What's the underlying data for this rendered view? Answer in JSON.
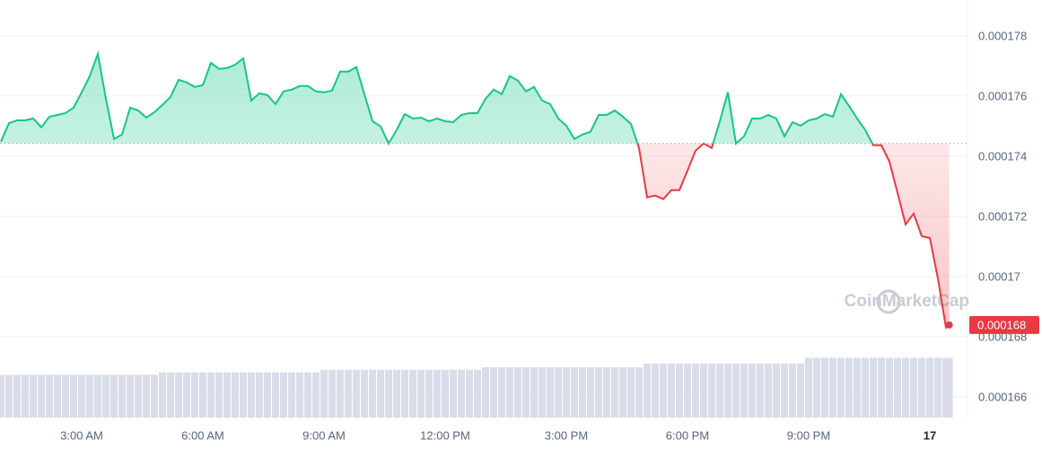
{
  "chart_data": {
    "type": "line",
    "watermark": "CoinMarketCap",
    "xlim": [
      0.978,
      24.867
    ],
    "xticks": [
      {
        "value": 3,
        "label": "3:00 AM"
      },
      {
        "value": 6,
        "label": "6:00 AM"
      },
      {
        "value": 9,
        "label": "9:00 AM"
      },
      {
        "value": 12,
        "label": "12:00 PM"
      },
      {
        "value": 15,
        "label": "3:00 PM"
      },
      {
        "value": 18,
        "label": "6:00 PM"
      },
      {
        "value": 21,
        "label": "9:00 PM"
      },
      {
        "value": 24,
        "label": "17"
      }
    ],
    "ylim": [
      0.00016531,
      0.00017919
    ],
    "yticks": [
      0.000166,
      0.000168,
      0.00017,
      0.000172,
      0.000174,
      0.000176,
      0.000178
    ],
    "grid": true,
    "baseline": 0.00017442,
    "up_color": "#16c784",
    "down_color": "#ea3943",
    "volume_color": "#d9dde9",
    "volume_ylim": [
      0,
      100
    ],
    "x": [
      1.0,
      1.2,
      1.4,
      1.6,
      1.8,
      2.0,
      2.2,
      2.4,
      2.6,
      2.8,
      3.0,
      3.2,
      3.4,
      3.6,
      3.8,
      4.0,
      4.2,
      4.4,
      4.6,
      4.8,
      5.0,
      5.2,
      5.4,
      5.6,
      5.8,
      6.0,
      6.2,
      6.4,
      6.6,
      6.8,
      7.0,
      7.2,
      7.4,
      7.6,
      7.8,
      8.0,
      8.2,
      8.4,
      8.6,
      8.8,
      9.0,
      9.2,
      9.4,
      9.6,
      9.8,
      10.0,
      10.2,
      10.4,
      10.6,
      10.8,
      11.0,
      11.2,
      11.4,
      11.6,
      11.8,
      12.0,
      12.2,
      12.4,
      12.6,
      12.8,
      13.0,
      13.2,
      13.4,
      13.6,
      13.8,
      14.0,
      14.2,
      14.4,
      14.6,
      14.8,
      15.0,
      15.2,
      15.4,
      15.6,
      15.8,
      16.0,
      16.2,
      16.4,
      16.6,
      16.8,
      17.0,
      17.2,
      17.4,
      17.6,
      17.8,
      18.0,
      18.2,
      18.4,
      18.6,
      18.8,
      19.0,
      19.2,
      19.4,
      19.6,
      19.8,
      20.0,
      20.2,
      20.4,
      20.6,
      20.8,
      21.0,
      21.2,
      21.4,
      21.6,
      21.8,
      22.0,
      22.2,
      22.4,
      22.6,
      22.8,
      23.0,
      23.2,
      23.4,
      23.6,
      23.8,
      24.0,
      24.2,
      24.4,
      24.48
    ],
    "values": [
      0.00017448,
      0.0001751,
      0.00017519,
      0.00017519,
      0.00017525,
      0.00017496,
      0.00017531,
      0.00017537,
      0.00017543,
      0.00017561,
      0.00017612,
      0.00017666,
      0.0001774,
      0.00017591,
      0.00017457,
      0.00017472,
      0.00017561,
      0.00017552,
      0.00017528,
      0.00017546,
      0.0001757,
      0.00017597,
      0.00017654,
      0.00017645,
      0.0001763,
      0.00017636,
      0.0001771,
      0.0001769,
      0.00017693,
      0.00017704,
      0.00017725,
      0.00017585,
      0.00017609,
      0.00017603,
      0.00017573,
      0.00017615,
      0.00017621,
      0.00017633,
      0.00017633,
      0.00017615,
      0.00017612,
      0.00017618,
      0.00017681,
      0.00017681,
      0.00017696,
      0.00017606,
      0.00017516,
      0.00017499,
      0.00017442,
      0.00017487,
      0.0001754,
      0.00017525,
      0.00017528,
      0.00017516,
      0.00017525,
      0.00017516,
      0.00017513,
      0.00017537,
      0.00017543,
      0.00017543,
      0.00017591,
      0.00017621,
      0.00017606,
      0.00017666,
      0.00017651,
      0.00017615,
      0.0001763,
      0.00017585,
      0.00017573,
      0.00017525,
      0.00017501,
      0.00017457,
      0.00017472,
      0.00017481,
      0.00017537,
      0.00017537,
      0.00017552,
      0.00017531,
      0.00017507,
      0.00017427,
      0.00017263,
      0.00017269,
      0.00017257,
      0.00017287,
      0.00017287,
      0.00017352,
      0.00017418,
      0.00017442,
      0.00017427,
      0.00017516,
      0.00017612,
      0.00017442,
      0.00017466,
      0.00017525,
      0.00017525,
      0.00017537,
      0.00017525,
      0.00017466,
      0.00017513,
      0.00017501,
      0.00017519,
      0.00017525,
      0.0001754,
      0.00017531,
      0.00017606,
      0.00017567,
      0.00017525,
      0.00017487,
      0.00017436,
      0.00017436,
      0.00017382,
      0.00017278,
      0.00017173,
      0.00017209,
      0.00017134,
      0.00017128,
      0.00016994,
      0.0001683,
      0.00016839
    ],
    "value_labels": [
      null,
      null,
      null,
      null,
      null,
      null,
      null,
      null,
      null,
      null,
      null,
      null,
      null,
      null,
      null,
      null,
      null,
      null,
      null,
      null,
      null,
      null,
      null,
      null,
      null,
      null,
      null,
      null,
      null,
      null,
      null,
      null,
      null,
      null,
      null,
      null,
      null,
      null,
      null,
      null,
      null,
      null,
      null,
      null,
      null,
      null,
      null,
      null,
      null,
      null,
      null,
      null,
      null,
      null,
      null,
      null,
      null,
      null,
      null,
      null,
      null,
      null,
      null,
      null,
      null,
      null,
      null,
      null,
      null,
      null,
      null,
      null,
      null,
      null,
      null,
      null,
      null,
      null,
      null,
      null,
      null,
      null,
      null,
      null,
      null,
      null,
      null,
      null,
      null,
      null,
      null,
      null,
      null,
      null,
      null,
      null,
      null,
      null,
      null,
      null,
      null,
      null,
      null,
      null,
      null,
      null,
      null,
      null,
      null,
      null,
      null,
      null,
      null,
      null,
      null,
      null,
      null,
      null,
      "0.000168"
    ],
    "volume": [
      68,
      68,
      68,
      68,
      68,
      68,
      68,
      68,
      68,
      68,
      68,
      68,
      68,
      68,
      68,
      68,
      68,
      68,
      68,
      68,
      72,
      72,
      72,
      72,
      72,
      72,
      72,
      72,
      72,
      72,
      72,
      72,
      72,
      72,
      72,
      72,
      72,
      72,
      72,
      72,
      76,
      76,
      76,
      76,
      76,
      76,
      76,
      76,
      76,
      76,
      76,
      76,
      76,
      76,
      76,
      76,
      76,
      76,
      76,
      76,
      80,
      80,
      80,
      80,
      80,
      80,
      80,
      80,
      80,
      80,
      80,
      80,
      80,
      80,
      80,
      80,
      80,
      80,
      80,
      80,
      86,
      86,
      86,
      86,
      86,
      86,
      86,
      86,
      86,
      86,
      86,
      86,
      86,
      86,
      86,
      86,
      86,
      86,
      86,
      86,
      95,
      95,
      95,
      95,
      95,
      95,
      95,
      95,
      95,
      95,
      95,
      95,
      95,
      95,
      95,
      95,
      95,
      95,
      95
    ]
  }
}
